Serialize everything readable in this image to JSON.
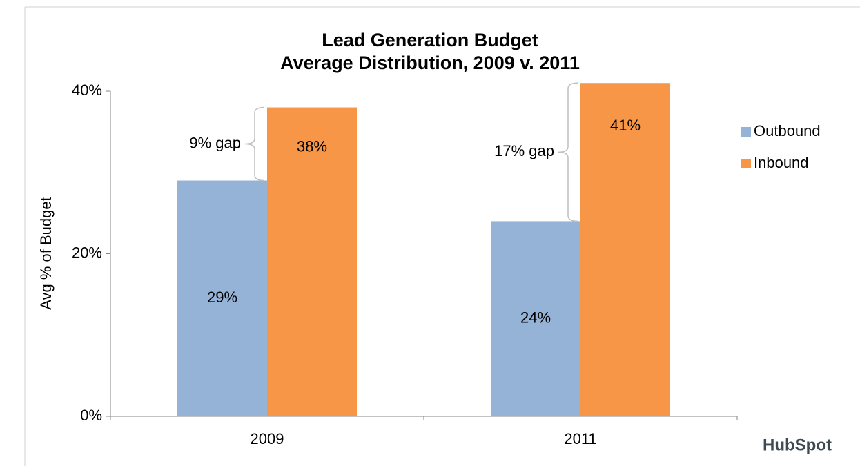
{
  "chart_data": {
    "type": "bar",
    "title": [
      "Lead Generation Budget",
      "Average Distribution, 2009 v. 2011"
    ],
    "y_label": "Avg % of Budget",
    "categories": [
      "2009",
      "2011"
    ],
    "series": [
      {
        "name": "Outbound",
        "color": "#95b3d7",
        "values": [
          29,
          24
        ],
        "value_labels": [
          "29%",
          "24%"
        ]
      },
      {
        "name": "Inbound",
        "color": "#f79646",
        "values": [
          38,
          41
        ],
        "value_labels": [
          "38%",
          "41%"
        ]
      }
    ],
    "ylim": [
      0,
      40
    ],
    "yticks": [
      {
        "value": 0,
        "label": "0%"
      },
      {
        "value": 20,
        "label": "20%"
      },
      {
        "value": 40,
        "label": "40%"
      }
    ],
    "annotations": [
      "9% gap",
      "17% gap"
    ],
    "legend": "right",
    "logo": "HubSpot"
  }
}
